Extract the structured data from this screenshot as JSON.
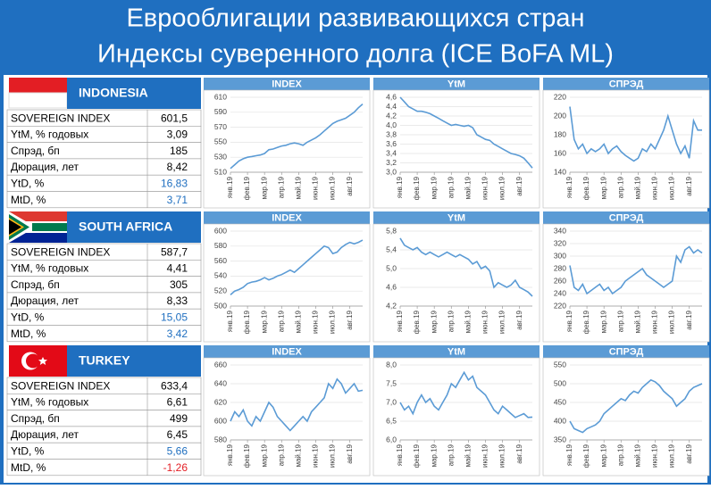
{
  "title": [
    "Еврооблигации развивающихся стран",
    "Индексы суверенного долга (ICE BoFA ML)"
  ],
  "countries": [
    {
      "name": "INDONESIA",
      "rows": [
        [
          "SOVEREIGN INDEX",
          "601,5"
        ],
        [
          "YtM, % годовых",
          "3,09"
        ],
        [
          "Спрэд, бп",
          "185"
        ],
        [
          "Дюрация, лет",
          "8,42"
        ],
        [
          "YtD, %",
          "16,83"
        ],
        [
          "MtD, %",
          "3,71"
        ]
      ]
    },
    {
      "name": "SOUTH AFRICA",
      "rows": [
        [
          "SOVEREIGN INDEX",
          "587,7"
        ],
        [
          "YtM, % годовых",
          "4,41"
        ],
        [
          "Спрэд, бп",
          "305"
        ],
        [
          "Дюрация, лет",
          "8,33"
        ],
        [
          "YtD, %",
          "15,05"
        ],
        [
          "MtD, %",
          "3,42"
        ]
      ]
    },
    {
      "name": "TURKEY",
      "rows": [
        [
          "SOVEREIGN INDEX",
          "633,4"
        ],
        [
          "YtM, % годовых",
          "6,61"
        ],
        [
          "Спрэд, бп",
          "499"
        ],
        [
          "Дюрация, лет",
          "6,45"
        ],
        [
          "YtD, %",
          "5,66"
        ],
        [
          "MtD, %",
          "-1,26"
        ]
      ]
    }
  ],
  "chart_data": [
    {
      "type": "line",
      "title": "INDEX",
      "color": "#5b9bd5",
      "categories": [
        "янв.19",
        null,
        null,
        null,
        "фев.19",
        null,
        null,
        null,
        "мар.19",
        null,
        null,
        null,
        "апр.19",
        null,
        null,
        null,
        "май.19",
        null,
        null,
        null,
        "июн.19",
        null,
        null,
        null,
        "июл.19",
        null,
        null,
        null,
        "авг.19",
        null,
        null,
        null
      ],
      "values": [
        515,
        520,
        525,
        528,
        530,
        531,
        532,
        533,
        535,
        540,
        541,
        543,
        545,
        546,
        548,
        549,
        548,
        546,
        550,
        553,
        556,
        560,
        565,
        570,
        575,
        578,
        580,
        582,
        586,
        590,
        596,
        601
      ],
      "ylim": [
        510,
        610
      ],
      "yticks": [
        510,
        530,
        550,
        570,
        590,
        610
      ]
    },
    {
      "type": "line",
      "title": "YtM",
      "color": "#5b9bd5",
      "categories": [
        "янв.19",
        null,
        null,
        null,
        "фев.19",
        null,
        null,
        null,
        "мар.19",
        null,
        null,
        null,
        "апр.19",
        null,
        null,
        null,
        "май.19",
        null,
        null,
        null,
        "июн.19",
        null,
        null,
        null,
        "июл.19",
        null,
        null,
        null,
        "авг.19",
        null,
        null,
        null
      ],
      "values": [
        4.6,
        4.5,
        4.4,
        4.35,
        4.3,
        4.3,
        4.28,
        4.25,
        4.2,
        4.15,
        4.1,
        4.05,
        4.0,
        4.02,
        4.0,
        3.98,
        4.0,
        3.95,
        3.8,
        3.75,
        3.7,
        3.68,
        3.6,
        3.55,
        3.5,
        3.45,
        3.4,
        3.38,
        3.35,
        3.3,
        3.2,
        3.09
      ],
      "ylim": [
        3.0,
        4.6
      ],
      "yticks": [
        {
          "value": 3.0,
          "label": "3,0"
        },
        {
          "value": 3.2,
          "label": "3,2"
        },
        {
          "value": 3.4,
          "label": "3,4"
        },
        {
          "value": 3.6,
          "label": "3,6"
        },
        {
          "value": 3.8,
          "label": "3,8"
        },
        {
          "value": 4.0,
          "label": "4,0"
        },
        {
          "value": 4.2,
          "label": "4,2"
        },
        {
          "value": 4.4,
          "label": "4,4"
        },
        {
          "value": 4.6,
          "label": "4,6"
        }
      ]
    },
    {
      "type": "line",
      "title": "СПРЭД",
      "color": "#5b9bd5",
      "categories": [
        "янв.19",
        null,
        null,
        null,
        "фев.19",
        null,
        null,
        null,
        "мар.19",
        null,
        null,
        null,
        "апр.19",
        null,
        null,
        null,
        "май.19",
        null,
        null,
        null,
        "июн.19",
        null,
        null,
        null,
        "июл.19",
        null,
        null,
        null,
        "авг.19",
        null,
        null,
        null
      ],
      "values": [
        210,
        175,
        165,
        170,
        160,
        165,
        162,
        165,
        170,
        160,
        165,
        168,
        162,
        158,
        155,
        152,
        155,
        165,
        162,
        170,
        165,
        175,
        185,
        200,
        185,
        170,
        160,
        168,
        155,
        195,
        185,
        185
      ],
      "ylim": [
        140,
        220
      ],
      "yticks": [
        140,
        160,
        180,
        200,
        220
      ]
    },
    {
      "type": "line",
      "title": "INDEX",
      "color": "#5b9bd5",
      "categories": [
        "янв.19",
        null,
        null,
        null,
        "фев.19",
        null,
        null,
        null,
        "мар.19",
        null,
        null,
        null,
        "апр.19",
        null,
        null,
        null,
        "май.19",
        null,
        null,
        null,
        "июн.19",
        null,
        null,
        null,
        "июл.19",
        null,
        null,
        null,
        "авг.19",
        null,
        null,
        null
      ],
      "values": [
        515,
        520,
        522,
        525,
        530,
        532,
        533,
        535,
        538,
        535,
        537,
        540,
        542,
        545,
        548,
        545,
        550,
        555,
        560,
        565,
        570,
        575,
        580,
        578,
        570,
        572,
        578,
        582,
        585,
        583,
        585,
        588
      ],
      "ylim": [
        500,
        600
      ],
      "yticks": [
        500,
        520,
        540,
        560,
        580,
        600
      ]
    },
    {
      "type": "line",
      "title": "YtM",
      "color": "#5b9bd5",
      "categories": [
        "янв.19",
        null,
        null,
        null,
        "фев.19",
        null,
        null,
        null,
        "мар.19",
        null,
        null,
        null,
        "апр.19",
        null,
        null,
        null,
        "май.19",
        null,
        null,
        null,
        "июн.19",
        null,
        null,
        null,
        "июл.19",
        null,
        null,
        null,
        "авг.19",
        null,
        null,
        null
      ],
      "values": [
        5.65,
        5.5,
        5.45,
        5.4,
        5.45,
        5.35,
        5.3,
        5.35,
        5.3,
        5.25,
        5.3,
        5.35,
        5.3,
        5.25,
        5.3,
        5.25,
        5.2,
        5.1,
        5.15,
        5.0,
        5.05,
        4.95,
        4.6,
        4.7,
        4.65,
        4.6,
        4.65,
        4.75,
        4.6,
        4.55,
        4.5,
        4.41
      ],
      "ylim": [
        4.2,
        5.8
      ],
      "yticks": [
        {
          "value": 4.2,
          "label": "4,2"
        },
        {
          "value": 4.6,
          "label": "4,6"
        },
        {
          "value": 5.0,
          "label": "5,0"
        },
        {
          "value": 5.4,
          "label": "5,4"
        },
        {
          "value": 5.8,
          "label": "5,8"
        }
      ]
    },
    {
      "type": "line",
      "title": "СПРЭД",
      "color": "#5b9bd5",
      "categories": [
        "янв.19",
        null,
        null,
        null,
        "фев.19",
        null,
        null,
        null,
        "мар.19",
        null,
        null,
        null,
        "апр.19",
        null,
        null,
        null,
        "май.19",
        null,
        null,
        null,
        "июн.19",
        null,
        null,
        null,
        "июл.19",
        null,
        null,
        null,
        "авг.19",
        null,
        null,
        null
      ],
      "values": [
        285,
        250,
        245,
        255,
        240,
        245,
        250,
        255,
        245,
        250,
        240,
        245,
        250,
        260,
        265,
        270,
        275,
        280,
        270,
        265,
        260,
        255,
        250,
        255,
        260,
        300,
        290,
        310,
        315,
        305,
        310,
        305
      ],
      "ylim": [
        220,
        340
      ],
      "yticks": [
        220,
        240,
        260,
        280,
        300,
        320,
        340
      ]
    },
    {
      "type": "line",
      "title": "INDEX",
      "color": "#5b9bd5",
      "categories": [
        "янв.19",
        null,
        null,
        null,
        "фев.19",
        null,
        null,
        null,
        "мар.19",
        null,
        null,
        null,
        "апр.19",
        null,
        null,
        null,
        "май.19",
        null,
        null,
        null,
        "июн.19",
        null,
        null,
        null,
        "июл.19",
        null,
        null,
        null,
        "авг.19",
        null,
        null,
        null
      ],
      "values": [
        600,
        610,
        605,
        612,
        600,
        595,
        605,
        600,
        610,
        620,
        615,
        605,
        600,
        595,
        590,
        595,
        600,
        605,
        600,
        610,
        615,
        620,
        625,
        640,
        635,
        645,
        640,
        630,
        635,
        640,
        632,
        633
      ],
      "ylim": [
        580,
        660
      ],
      "yticks": [
        580,
        600,
        620,
        640,
        660
      ]
    },
    {
      "type": "line",
      "title": "YtM",
      "color": "#5b9bd5",
      "categories": [
        "янв.19",
        null,
        null,
        null,
        "фев.19",
        null,
        null,
        null,
        "мар.19",
        null,
        null,
        null,
        "апр.19",
        null,
        null,
        null,
        "май.19",
        null,
        null,
        null,
        "июн.19",
        null,
        null,
        null,
        "июл.19",
        null,
        null,
        null,
        "авг.19",
        null,
        null,
        null
      ],
      "values": [
        7.0,
        6.8,
        6.9,
        6.7,
        7.0,
        7.2,
        7.0,
        7.1,
        6.9,
        6.8,
        7.0,
        7.2,
        7.5,
        7.4,
        7.6,
        7.8,
        7.6,
        7.7,
        7.4,
        7.3,
        7.2,
        7.0,
        6.8,
        6.7,
        6.9,
        6.8,
        6.7,
        6.6,
        6.65,
        6.7,
        6.6,
        6.61
      ],
      "ylim": [
        6.0,
        8.0
      ],
      "yticks": [
        {
          "value": 6.0,
          "label": "6,0"
        },
        {
          "value": 6.5,
          "label": "6,5"
        },
        {
          "value": 7.0,
          "label": "7,0"
        },
        {
          "value": 7.5,
          "label": "7,5"
        },
        {
          "value": 8.0,
          "label": "8,0"
        }
      ]
    },
    {
      "type": "line",
      "title": "СПРЭД",
      "color": "#5b9bd5",
      "categories": [
        "янв.19",
        null,
        null,
        null,
        "фев.19",
        null,
        null,
        null,
        "мар.19",
        null,
        null,
        null,
        "апр.19",
        null,
        null,
        null,
        "май.19",
        null,
        null,
        null,
        "июн.19",
        null,
        null,
        null,
        "июл.19",
        null,
        null,
        null,
        "авг.19",
        null,
        null,
        null
      ],
      "values": [
        400,
        380,
        375,
        370,
        380,
        385,
        390,
        400,
        420,
        430,
        440,
        450,
        460,
        455,
        470,
        480,
        475,
        490,
        500,
        510,
        505,
        495,
        480,
        470,
        460,
        440,
        450,
        460,
        480,
        490,
        495,
        500
      ],
      "ylim": [
        350,
        550
      ],
      "yticks": [
        350,
        400,
        450,
        500,
        550
      ]
    }
  ]
}
